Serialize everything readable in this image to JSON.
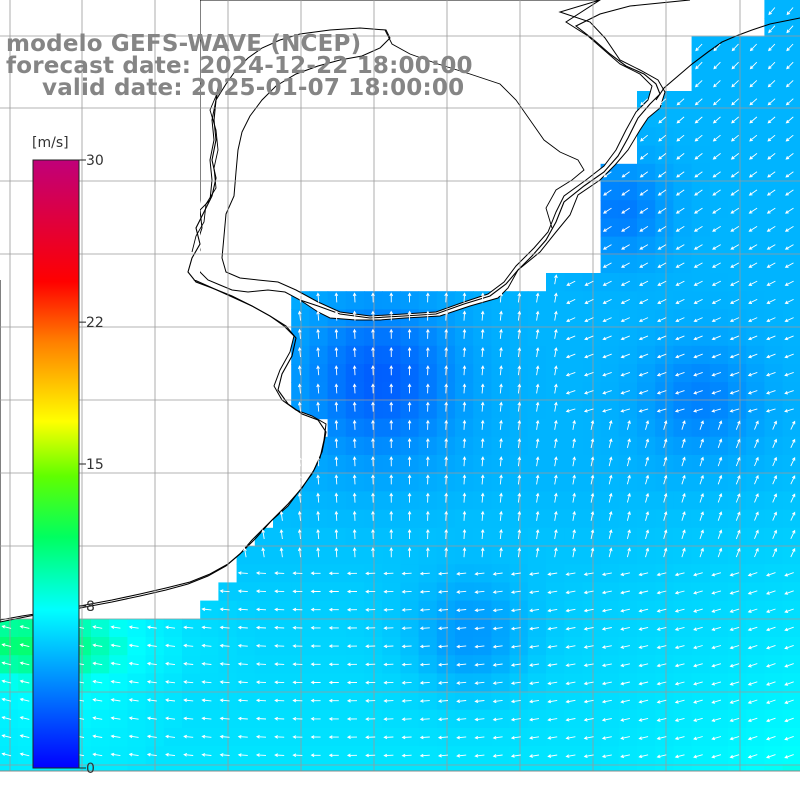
{
  "title": {
    "model": "modelo GEFS-WAVE (NCEP)",
    "forecast": "forecast date: 2024-12-22 18:00:00",
    "valid": "valid date: 2025-01-07 18:00:00"
  },
  "colorbar": {
    "unit": "[m/s]",
    "ticks": [
      {
        "value": 30,
        "label": "30"
      },
      {
        "value": 22,
        "label": "22"
      },
      {
        "value": 15,
        "label": "15"
      },
      {
        "value": 8,
        "label": "8"
      },
      {
        "value": 0,
        "label": "0"
      }
    ],
    "range": [
      0,
      30
    ]
  },
  "colors": {
    "land": "#ffffff",
    "coast": "#000000",
    "grid": "#9a9a9a",
    "arrows": "#ffffff",
    "deep_blue": "#0a1fe6",
    "cyan": "#1ee6f0",
    "green": "#33dd22"
  },
  "variable": "wind speed and direction"
}
